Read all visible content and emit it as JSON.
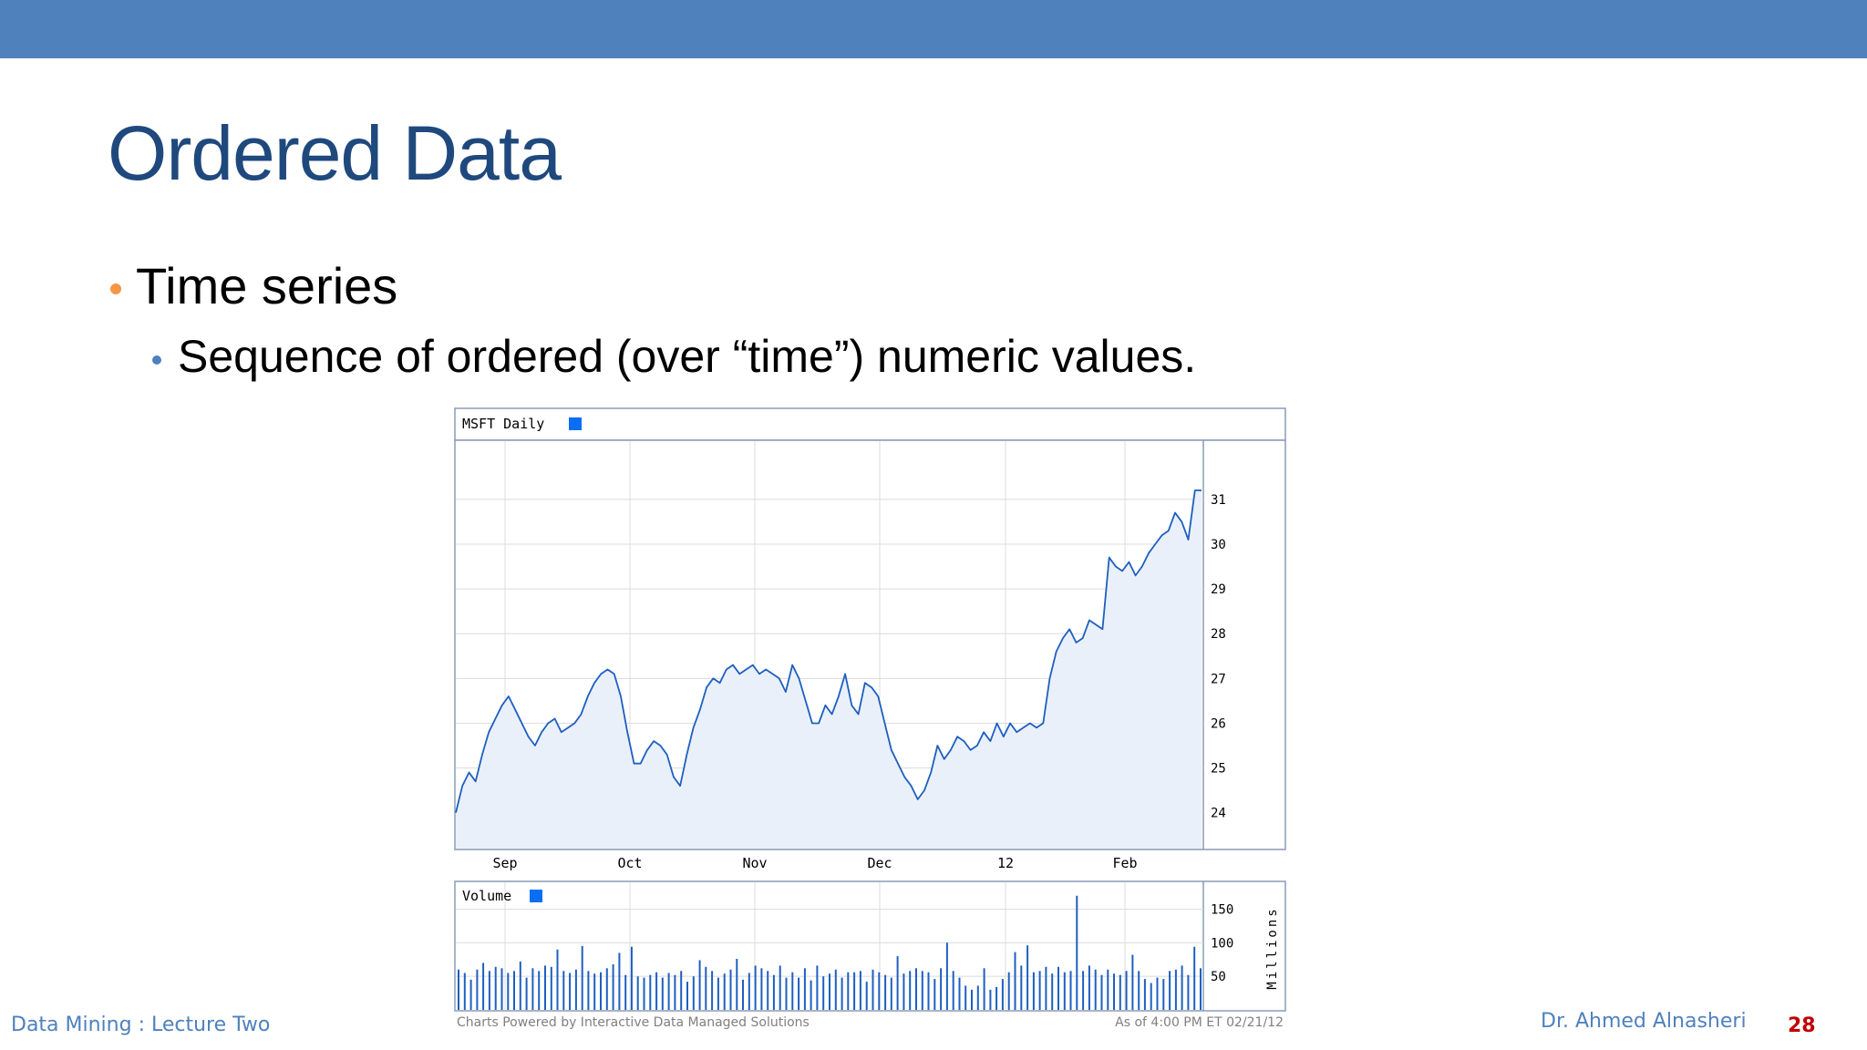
{
  "slide": {
    "title": "Ordered Data",
    "bullets": [
      {
        "text": "Time series",
        "level": 1
      },
      {
        "text": "Sequence of ordered (over “time”) numeric values.",
        "level": 2
      }
    ]
  },
  "footer": {
    "left": "Data Mining : Lecture Two",
    "right": "Dr. Ahmed Alnasheri",
    "page": "28"
  },
  "colors": {
    "top_bar": "#4f81bd",
    "title": "#1f497d",
    "bullet_level1": "#f79646",
    "bullet_level2": "#4f81bd",
    "series_line": "#1e5fc0",
    "series_fill": "#eaf0f9",
    "volume_bar": "#1e5fc0",
    "legend_swatch": "#0a6ef5",
    "footer_text": "#4f81bd",
    "page_number": "#c00000"
  },
  "chart_data": [
    {
      "type": "area",
      "title": "MSFT Daily",
      "legend": "top-left",
      "grid": true,
      "x_ticks": [
        "Sep",
        "Oct",
        "Nov",
        "Dec",
        "12",
        "Feb"
      ],
      "y_ticks": [
        "24",
        "25",
        "26",
        "27",
        "28",
        "29",
        "30",
        "31"
      ],
      "ylim": [
        23.2,
        32.3
      ],
      "y_axis_side": "right",
      "series": [
        {
          "name": "MSFT Daily",
          "values": [
            24.0,
            24.6,
            24.9,
            24.7,
            25.3,
            25.8,
            26.1,
            26.4,
            26.6,
            26.3,
            26.0,
            25.7,
            25.5,
            25.8,
            26.0,
            26.1,
            25.8,
            25.9,
            26.0,
            26.2,
            26.6,
            26.9,
            27.1,
            27.2,
            27.1,
            26.6,
            25.8,
            25.1,
            25.1,
            25.4,
            25.6,
            25.5,
            25.3,
            24.8,
            24.6,
            25.3,
            25.9,
            26.3,
            26.8,
            27.0,
            26.9,
            27.2,
            27.3,
            27.1,
            27.2,
            27.3,
            27.1,
            27.2,
            27.1,
            27.0,
            26.7,
            27.3,
            27.0,
            26.5,
            26.0,
            26.0,
            26.4,
            26.2,
            26.6,
            27.1,
            26.4,
            26.2,
            26.9,
            26.8,
            26.6,
            26.0,
            25.4,
            25.1,
            24.8,
            24.6,
            24.3,
            24.5,
            24.9,
            25.5,
            25.2,
            25.4,
            25.7,
            25.6,
            25.4,
            25.5,
            25.8,
            25.6,
            26.0,
            25.7,
            26.0,
            25.8,
            25.9,
            26.0,
            25.9,
            26.0,
            27.0,
            27.6,
            27.9,
            28.1,
            27.8,
            27.9,
            28.3,
            28.2,
            28.1,
            29.7,
            29.5,
            29.4,
            29.6,
            29.3,
            29.5,
            29.8,
            30.0,
            30.2,
            30.3,
            30.7,
            30.5,
            30.1,
            31.2,
            31.2
          ]
        }
      ]
    },
    {
      "type": "bar",
      "title": "Volume",
      "legend": "top-left",
      "grid": true,
      "y_ticks": [
        "50",
        "100",
        "150"
      ],
      "ylabel": "Millions",
      "ylim": [
        0,
        190
      ],
      "y_axis_side": "right",
      "series": [
        {
          "name": "Volume",
          "values": [
            60,
            55,
            45,
            60,
            70,
            58,
            64,
            62,
            55,
            58,
            72,
            48,
            62,
            58,
            66,
            64,
            90,
            58,
            55,
            60,
            95,
            58,
            54,
            56,
            62,
            68,
            85,
            52,
            94,
            50,
            48,
            52,
            56,
            48,
            55,
            52,
            58,
            42,
            50,
            74,
            64,
            58,
            48,
            54,
            60,
            76,
            45,
            55,
            66,
            62,
            58,
            52,
            66,
            48,
            56,
            48,
            62,
            44,
            66,
            50,
            54,
            60,
            48,
            56,
            56,
            58,
            42,
            60,
            56,
            52,
            48,
            80,
            54,
            58,
            62,
            58,
            56,
            46,
            62,
            100,
            58,
            48,
            36,
            30,
            36,
            62,
            30,
            34,
            46,
            56,
            86,
            66,
            96,
            56,
            58,
            64,
            54,
            64,
            56,
            58,
            170,
            58,
            66,
            60,
            52,
            60,
            54,
            52,
            58,
            82,
            58,
            46,
            40,
            48,
            46,
            58,
            60,
            66,
            52,
            94,
            62
          ]
        }
      ]
    }
  ],
  "chart_footer": {
    "left": "Charts Powered by Interactive Data Managed Solutions",
    "right": "As of 4:00 PM ET 02/21/12"
  }
}
